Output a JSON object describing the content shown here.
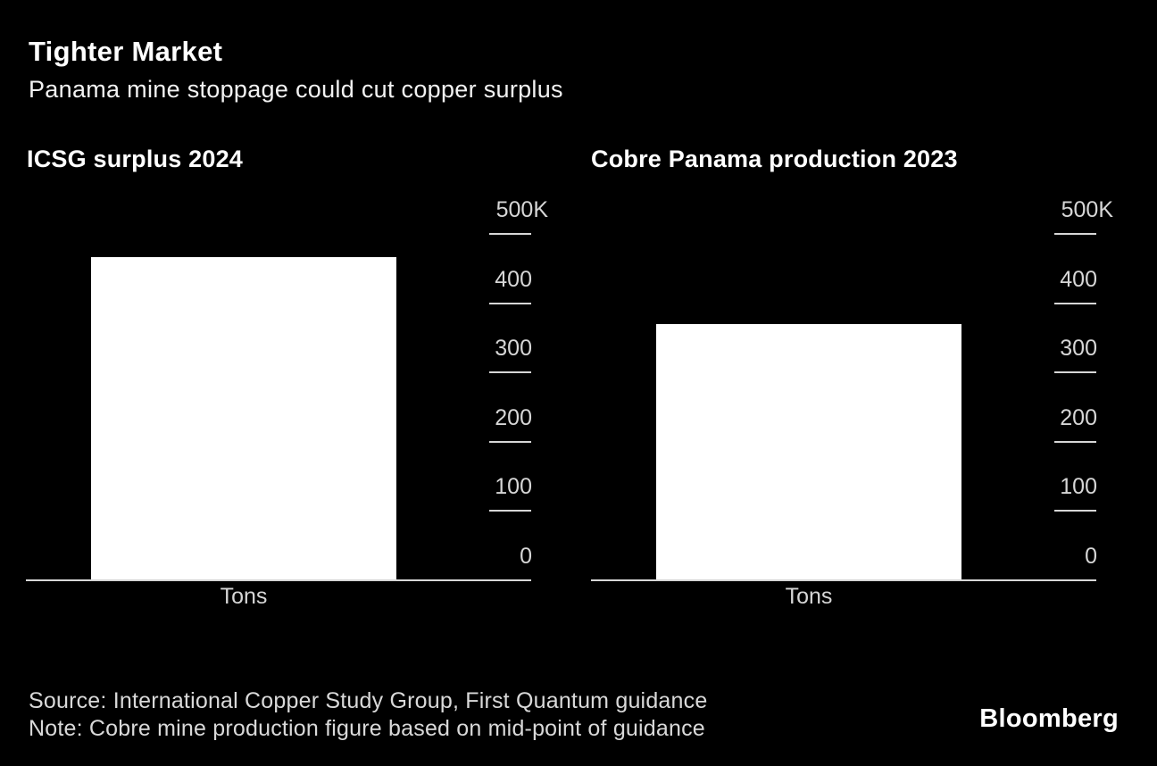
{
  "header": {
    "title": "Tighter Market",
    "subtitle": "Panama mine stoppage could cut copper surplus"
  },
  "chart_data": [
    {
      "type": "bar",
      "title": "ICSG surplus 2024",
      "categories": [
        "Tons"
      ],
      "values": [
        467
      ],
      "value_unit": "thousand tons",
      "ylim": [
        0,
        500
      ],
      "yticks": [
        0,
        100,
        200,
        300,
        400,
        500
      ],
      "ytick_labels": [
        "0",
        "100",
        "200",
        "300",
        "400",
        "500K"
      ],
      "axis_label_side": "right",
      "grid": false,
      "bar_color": "#ffffff"
    },
    {
      "type": "bar",
      "title": "Cobre Panama production 2023",
      "categories": [
        "Tons"
      ],
      "values": [
        370
      ],
      "value_unit": "thousand tons",
      "ylim": [
        0,
        500
      ],
      "yticks": [
        0,
        100,
        200,
        300,
        400,
        500
      ],
      "ytick_labels": [
        "0",
        "100",
        "200",
        "300",
        "400",
        "500K"
      ],
      "axis_label_side": "right",
      "grid": false,
      "bar_color": "#ffffff"
    }
  ],
  "footer": {
    "source": "Source: International Copper Study Group, First Quantum guidance",
    "note": "Note: Cobre mine production figure based on mid-point of guidance",
    "logo": "Bloomberg"
  },
  "colors": {
    "background": "#000000",
    "text_primary": "#ffffff",
    "text_secondary": "#d6d6d6",
    "axis": "#d6d6d6",
    "bar": "#ffffff"
  }
}
